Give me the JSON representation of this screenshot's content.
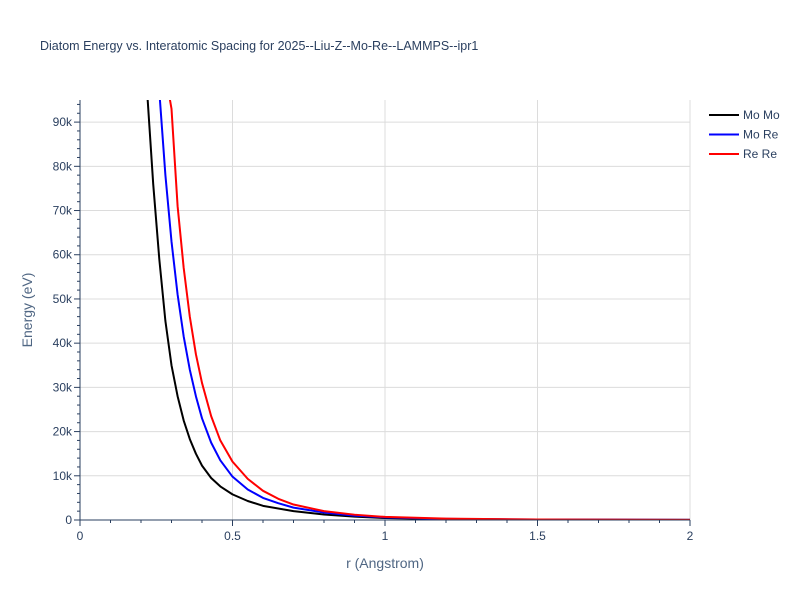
{
  "chart_data": {
    "type": "line",
    "title": "Diatom Energy vs. Interatomic Spacing for 2025--Liu-Z--Mo-Re--LAMMPS--ipr1",
    "xlabel": "r (Angstrom)",
    "ylabel": "Energy (eV)",
    "xlim": [
      0,
      2
    ],
    "ylim": [
      0,
      95000
    ],
    "x_ticks": [
      0,
      0.5,
      1,
      1.5,
      2
    ],
    "x_tick_labels": [
      "0",
      "0.5",
      "1",
      "1.5",
      "2"
    ],
    "y_ticks": [
      0,
      10000,
      20000,
      30000,
      40000,
      50000,
      60000,
      70000,
      80000,
      90000
    ],
    "y_tick_labels": [
      "0",
      "10k",
      "20k",
      "30k",
      "40k",
      "50k",
      "60k",
      "70k",
      "80k",
      "90k"
    ],
    "grid": true,
    "legend_position": "top-right",
    "series": [
      {
        "name": "Mo Mo",
        "color": "#000000",
        "x": [
          0.22,
          0.24,
          0.26,
          0.28,
          0.3,
          0.32,
          0.34,
          0.36,
          0.38,
          0.4,
          0.43,
          0.46,
          0.5,
          0.55,
          0.6,
          0.7,
          0.8,
          0.9,
          1.0,
          1.2,
          1.5,
          2.0
        ],
        "y": [
          97000,
          76000,
          59000,
          45000,
          35000,
          28000,
          22500,
          18300,
          15000,
          12300,
          9500,
          7600,
          5800,
          4300,
          3200,
          2000,
          1250,
          750,
          450,
          200,
          80,
          20
        ]
      },
      {
        "name": "Mo Re",
        "color": "#0000ff",
        "x": [
          0.26,
          0.28,
          0.3,
          0.32,
          0.34,
          0.36,
          0.38,
          0.4,
          0.43,
          0.46,
          0.5,
          0.55,
          0.6,
          0.65,
          0.7,
          0.8,
          0.9,
          1.0,
          1.2,
          1.5,
          2.0
        ],
        "y": [
          97000,
          78000,
          63000,
          51000,
          41500,
          34000,
          28000,
          23000,
          17500,
          13500,
          9800,
          6900,
          5000,
          3800,
          2800,
          1700,
          1000,
          600,
          250,
          100,
          30
        ]
      },
      {
        "name": "Re Re",
        "color": "#ff0000",
        "x": [
          0.29,
          0.3,
          0.32,
          0.34,
          0.36,
          0.38,
          0.4,
          0.43,
          0.46,
          0.5,
          0.55,
          0.6,
          0.65,
          0.7,
          0.8,
          0.9,
          1.0,
          1.2,
          1.5,
          2.0
        ],
        "y": [
          97000,
          93000,
          71000,
          57000,
          46000,
          37500,
          31000,
          23500,
          18000,
          13200,
          9300,
          6600,
          4800,
          3500,
          2000,
          1200,
          700,
          300,
          120,
          40
        ]
      }
    ]
  }
}
